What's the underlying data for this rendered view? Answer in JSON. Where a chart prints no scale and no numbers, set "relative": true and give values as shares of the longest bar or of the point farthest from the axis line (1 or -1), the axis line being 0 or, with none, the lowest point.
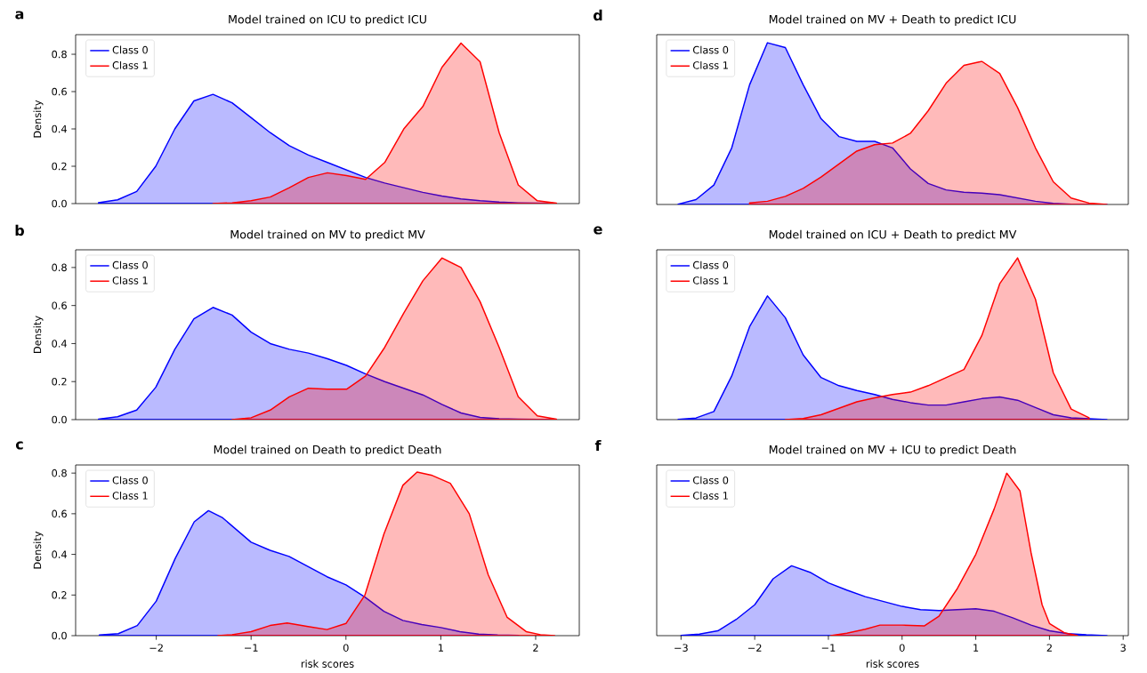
{
  "chart_data": [
    {
      "type": "area",
      "title": "Model trained on ICU to predict ICU",
      "annotations": [
        "a"
      ],
      "ylabel": "Density",
      "legend": "top left",
      "tick_labels": "y",
      "ylim": [
        0,
        0.905
      ],
      "yticks": [
        {
          "value": 0,
          "label": "0.0"
        },
        {
          "value": 0.2,
          "label": "0.2"
        },
        {
          "value": 0.4,
          "label": "0.4"
        },
        {
          "value": 0.6,
          "label": "0.6"
        },
        {
          "value": 0.8,
          "label": "0.8"
        }
      ],
      "categories": [
        null,
        null,
        null,
        null,
        null,
        null,
        null,
        null,
        null,
        null,
        null,
        null,
        null,
        null,
        null,
        null,
        null,
        null,
        null,
        null,
        null,
        null,
        null,
        null,
        null
      ],
      "series": [
        {
          "name": "Class 0",
          "color": "#0000ff",
          "values": [
            0.005,
            0.02,
            0.065,
            0.2,
            0.4,
            0.55,
            0.585,
            0.54,
            0.46,
            0.38,
            0.31,
            0.26,
            0.22,
            0.18,
            0.14,
            0.11,
            0.085,
            0.06,
            0.04,
            0.025,
            0.015,
            0.008,
            0.004,
            0.002,
            0.001
          ]
        },
        {
          "name": "Class 1",
          "color": "#ff0000",
          "values": [
            null,
            null,
            null,
            null,
            null,
            null,
            0.0,
            0.004,
            0.015,
            0.035,
            0.085,
            0.14,
            0.165,
            0.15,
            0.13,
            0.22,
            0.4,
            0.52,
            0.73,
            0.86,
            0.76,
            0.38,
            0.1,
            0.015,
            0.002
          ]
        }
      ]
    },
    {
      "type": "area",
      "title": "Model trained on MV to predict MV",
      "annotations": [
        "b"
      ],
      "ylabel": "Density",
      "legend": "top left",
      "tick_labels": "y",
      "ylim": [
        0,
        0.893
      ],
      "yticks": [
        {
          "value": 0,
          "label": "0.0"
        },
        {
          "value": 0.2,
          "label": "0.2"
        },
        {
          "value": 0.4,
          "label": "0.4"
        },
        {
          "value": 0.6,
          "label": "0.6"
        },
        {
          "value": 0.8,
          "label": "0.8"
        }
      ],
      "categories": [
        null,
        null,
        null,
        null,
        null,
        null,
        null,
        null,
        null,
        null,
        null,
        null,
        null,
        null,
        null,
        null,
        null,
        null,
        null,
        null,
        null,
        null,
        null,
        null,
        null
      ],
      "series": [
        {
          "name": "Class 0",
          "color": "#0000ff",
          "values": [
            0.003,
            0.015,
            0.05,
            0.17,
            0.37,
            0.53,
            0.59,
            0.55,
            0.46,
            0.4,
            0.37,
            0.35,
            0.32,
            0.285,
            0.24,
            0.2,
            0.165,
            0.13,
            0.08,
            0.035,
            0.012,
            0.005,
            0.002,
            0.001,
            0.0
          ]
        },
        {
          "name": "Class 1",
          "color": "#ff0000",
          "values": [
            null,
            null,
            null,
            null,
            null,
            null,
            null,
            0.0,
            0.01,
            0.05,
            0.12,
            0.165,
            0.16,
            0.16,
            0.23,
            0.38,
            0.56,
            0.73,
            0.85,
            0.8,
            0.62,
            0.38,
            0.12,
            0.02,
            0.002
          ]
        }
      ]
    },
    {
      "type": "area",
      "title": "Model trained on Death to predict Death",
      "annotations": [
        "c"
      ],
      "ylabel": "Density",
      "xlabel": "risk scores",
      "legend": "top left",
      "xlim": [
        -2.85,
        2.46
      ],
      "ylim": [
        0,
        0.84
      ],
      "xticks": [
        {
          "value": -2,
          "label": "−2"
        },
        {
          "value": -1,
          "label": "−1"
        },
        0,
        1,
        2
      ],
      "yticks": [
        {
          "value": 0,
          "label": "0.0"
        },
        {
          "value": 0.2,
          "label": "0.2"
        },
        {
          "value": 0.4,
          "label": "0.4"
        },
        {
          "value": 0.6,
          "label": "0.6"
        },
        {
          "value": 0.8,
          "label": "0.8"
        }
      ],
      "series": [
        {
          "name": "Class 0",
          "color": "#0000ff",
          "x": [
            -2.6,
            -2.4,
            -2.2,
            -2.0,
            -1.8,
            -1.6,
            -1.45,
            -1.3,
            -1.2,
            -1.0,
            -0.8,
            -0.6,
            -0.4,
            -0.2,
            0.0,
            0.2,
            0.4,
            0.6,
            0.8,
            1.0,
            1.2,
            1.4,
            1.6,
            1.82
          ],
          "values": [
            0.003,
            0.01,
            0.05,
            0.17,
            0.38,
            0.56,
            0.615,
            0.58,
            0.54,
            0.46,
            0.42,
            0.39,
            0.34,
            0.29,
            0.25,
            0.19,
            0.12,
            0.075,
            0.055,
            0.04,
            0.02,
            0.008,
            0.003,
            0.001
          ]
        },
        {
          "name": "Class 1",
          "color": "#ff0000",
          "x": [
            -1.35,
            -1.2,
            -1.0,
            -0.8,
            -0.62,
            -0.4,
            -0.2,
            0.0,
            0.2,
            0.4,
            0.6,
            0.75,
            0.9,
            1.1,
            1.3,
            1.5,
            1.7,
            1.9,
            2.05,
            2.2
          ],
          "values": [
            0.0,
            0.005,
            0.02,
            0.05,
            0.062,
            0.045,
            0.03,
            0.06,
            0.2,
            0.5,
            0.74,
            0.805,
            0.79,
            0.75,
            0.6,
            0.3,
            0.09,
            0.02,
            0.005,
            0.0
          ]
        }
      ]
    },
    {
      "type": "area",
      "title": "Model trained on MV + Death to predict ICU",
      "annotations": [
        "d"
      ],
      "legend": "top left",
      "relative": true,
      "tick_labels": false,
      "categories": [
        null,
        null,
        null,
        null,
        null,
        null,
        null,
        null,
        null,
        null,
        null,
        null,
        null,
        null,
        null,
        null,
        null,
        null,
        null,
        null,
        null,
        null,
        null,
        null,
        null
      ],
      "series": [
        {
          "name": "Class 0",
          "color": "#0000ff",
          "values": [
            0.002,
            0.03,
            0.12,
            0.35,
            0.74,
            1,
            0.97,
            0.74,
            0.53,
            0.42,
            0.39,
            0.39,
            0.35,
            0.22,
            0.13,
            0.09,
            0.075,
            0.07,
            0.06,
            0.04,
            0.02,
            0.007,
            0.002,
            0.001,
            0.0
          ]
        },
        {
          "name": "Class 1",
          "color": "#ff0000",
          "values": [
            null,
            null,
            null,
            null,
            0.01,
            0.02,
            0.05,
            0.1,
            0.17,
            0.25,
            0.33,
            0.37,
            0.38,
            0.44,
            0.58,
            0.75,
            0.86,
            0.885,
            0.81,
            0.6,
            0.35,
            0.14,
            0.04,
            0.009,
            0.0
          ]
        }
      ]
    },
    {
      "type": "area",
      "title": "Model trained on ICU + Death to predict MV",
      "annotations": [
        "e"
      ],
      "legend": "top left",
      "relative": true,
      "tick_labels": false,
      "categories": [
        null,
        null,
        null,
        null,
        null,
        null,
        null,
        null,
        null,
        null,
        null,
        null,
        null,
        null,
        null,
        null,
        null,
        null,
        null,
        null,
        null,
        null,
        null,
        null,
        null
      ],
      "series": [
        {
          "name": "Class 0",
          "color": "#0000ff",
          "values": [
            0.002,
            0.01,
            0.05,
            0.27,
            0.575,
            0.765,
            0.63,
            0.4,
            0.26,
            0.21,
            0.18,
            0.155,
            0.125,
            0.105,
            0.09,
            0.09,
            0.11,
            0.13,
            0.14,
            0.12,
            0.075,
            0.03,
            0.011,
            0.005,
            0.0
          ]
        },
        {
          "name": "Class 1",
          "color": "#ff0000",
          "values": [
            null,
            null,
            null,
            null,
            null,
            null,
            0.0,
            0.007,
            0.03,
            0.07,
            0.11,
            0.135,
            0.155,
            0.17,
            0.21,
            0.26,
            0.31,
            0.52,
            0.84,
            1,
            0.745,
            0.29,
            0.065,
            0.012,
            null
          ]
        }
      ]
    },
    {
      "type": "area",
      "title": "Model trained on MV + ICU to predict Death",
      "annotations": [
        "f"
      ],
      "xlabel": "risk scores",
      "legend": "top left",
      "relative": true,
      "tick_labels": "x",
      "xlim": [
        -3.33,
        3.07
      ],
      "xticks": [
        {
          "value": -3,
          "label": "−3"
        },
        {
          "value": -2,
          "label": "−2"
        },
        {
          "value": -1,
          "label": "−1"
        },
        0,
        1,
        2,
        3
      ],
      "series": [
        {
          "name": "Class 0",
          "color": "#0000ff",
          "x": [
            -3.0,
            -2.75,
            -2.5,
            -2.25,
            -2.0,
            -1.75,
            -1.5,
            -1.25,
            -1.0,
            -0.75,
            -0.5,
            -0.25,
            0.0,
            0.25,
            0.5,
            0.75,
            1.0,
            1.25,
            1.5,
            1.75,
            2.0,
            2.25,
            2.5,
            2.78
          ],
          "values": [
            0.002,
            0.01,
            0.03,
            0.1,
            0.19,
            0.35,
            0.43,
            0.39,
            0.325,
            0.28,
            0.24,
            0.21,
            0.18,
            0.16,
            0.155,
            0.16,
            0.165,
            0.15,
            0.11,
            0.065,
            0.03,
            0.012,
            0.005,
            0.0
          ]
        },
        {
          "name": "Class 1",
          "color": "#ff0000",
          "x": [
            -0.97,
            -0.75,
            -0.5,
            -0.3,
            0.0,
            0.3,
            0.5,
            0.75,
            1.0,
            1.25,
            1.42,
            1.6,
            1.75,
            1.9,
            2.0,
            2.2,
            2.38
          ],
          "values": [
            0.0,
            0.015,
            0.04,
            0.065,
            0.065,
            0.06,
            0.12,
            0.29,
            0.5,
            0.78,
            1,
            0.89,
            0.51,
            0.19,
            0.075,
            0.018,
            0.0
          ]
        }
      ]
    }
  ]
}
